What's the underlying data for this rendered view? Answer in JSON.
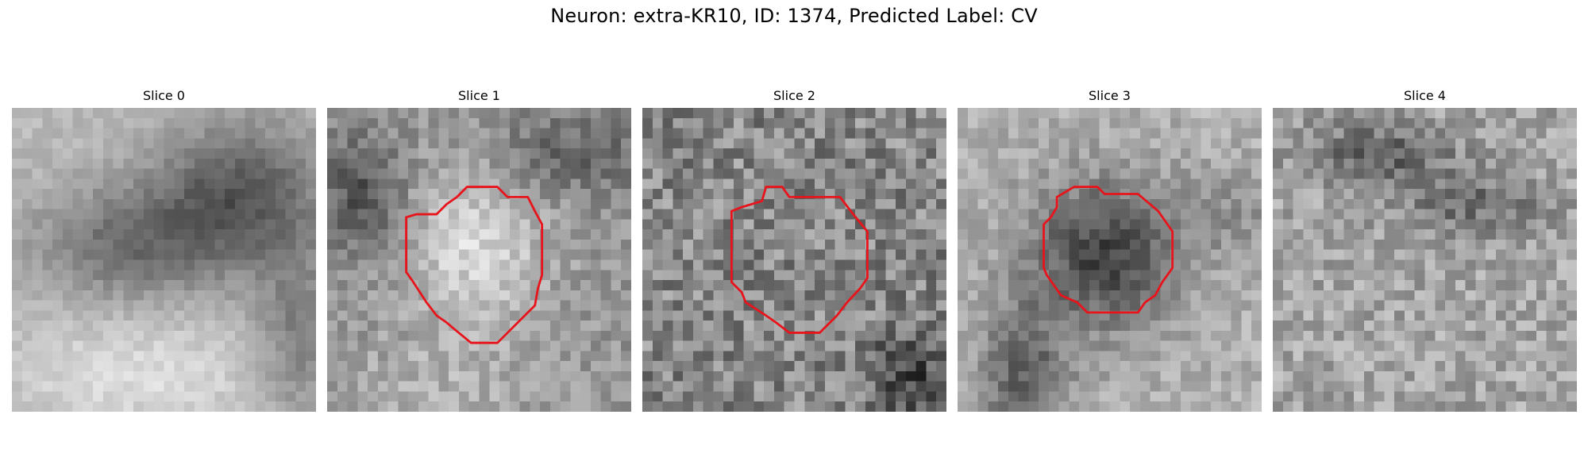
{
  "figure": {
    "title": "Neuron: extra-KR10, ID: 1374, Predicted Label: CV"
  },
  "outline_color": "#e8141b",
  "slices": [
    {
      "label": "Slice 0",
      "has_outline": false,
      "texture": "smooth-dark-right",
      "seed": 11
    },
    {
      "label": "Slice 1",
      "has_outline": true,
      "texture": "bright-center",
      "seed": 23
    },
    {
      "label": "Slice 2",
      "has_outline": true,
      "texture": "noisy",
      "seed": 37
    },
    {
      "label": "Slice 3",
      "has_outline": true,
      "texture": "dark-center",
      "seed": 51
    },
    {
      "label": "Slice 4",
      "has_outline": false,
      "texture": "noisy-light",
      "seed": 67
    }
  ]
}
